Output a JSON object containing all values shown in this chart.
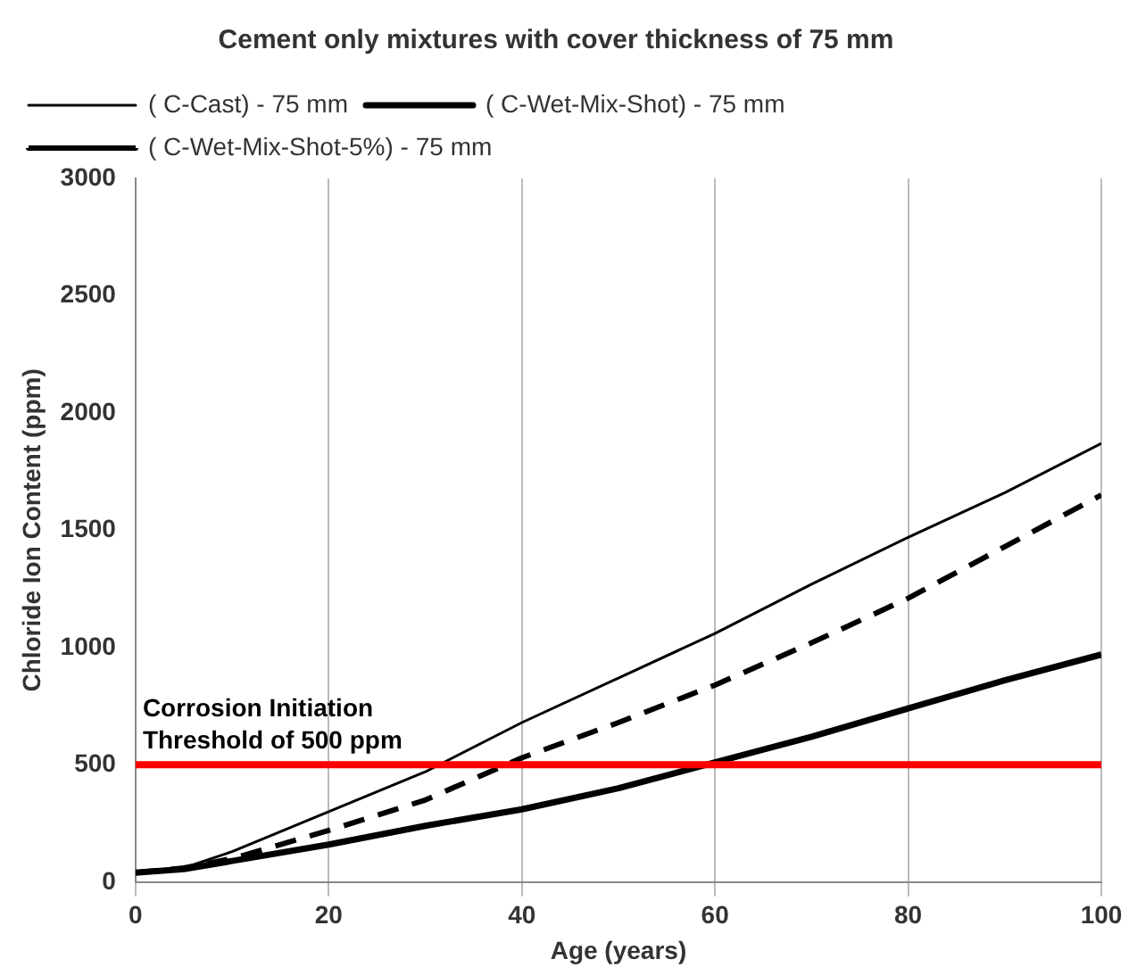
{
  "chart_data": {
    "type": "line",
    "title": "Cement only mixtures with cover thickness of 75 mm",
    "xlabel": "Age (years)",
    "ylabel": "Chloride Ion Content (ppm)",
    "x": [
      0,
      5,
      10,
      20,
      30,
      40,
      50,
      60,
      70,
      80,
      90,
      100
    ],
    "series": [
      {
        "name": "( C-Cast) - 75 mm",
        "color": "#000000",
        "line_style": "solid",
        "values": [
          40,
          60,
          130,
          300,
          470,
          680,
          870,
          1060,
          1270,
          1470,
          1660,
          1870
        ]
      },
      {
        "name": "( C-Wet-Mix-Shot) - 75 mm",
        "color": "#000000",
        "line_style": "solid",
        "values": [
          40,
          55,
          90,
          160,
          240,
          310,
          400,
          510,
          620,
          740,
          860,
          970
        ]
      },
      {
        "name": "( C-Wet-Mix-Shot-5%) - 75 mm",
        "color": "#000000",
        "line_style": "dashed",
        "values": [
          40,
          60,
          100,
          220,
          350,
          530,
          680,
          840,
          1020,
          1210,
          1430,
          1650
        ]
      }
    ],
    "xlim": [
      0,
      100
    ],
    "xticks": [
      0,
      20,
      40,
      60,
      80,
      100
    ],
    "ylim": [
      0,
      3000
    ],
    "yticks": [
      0,
      500,
      1000,
      1500,
      2000,
      2500,
      3000
    ],
    "ref_lines": [
      {
        "axis": "y",
        "value": 500,
        "label": "Corrosion Initiation Threshold of 500 ppm",
        "color": "#ff0000"
      }
    ],
    "grid": "x",
    "legend": "top left",
    "marker": "none"
  }
}
